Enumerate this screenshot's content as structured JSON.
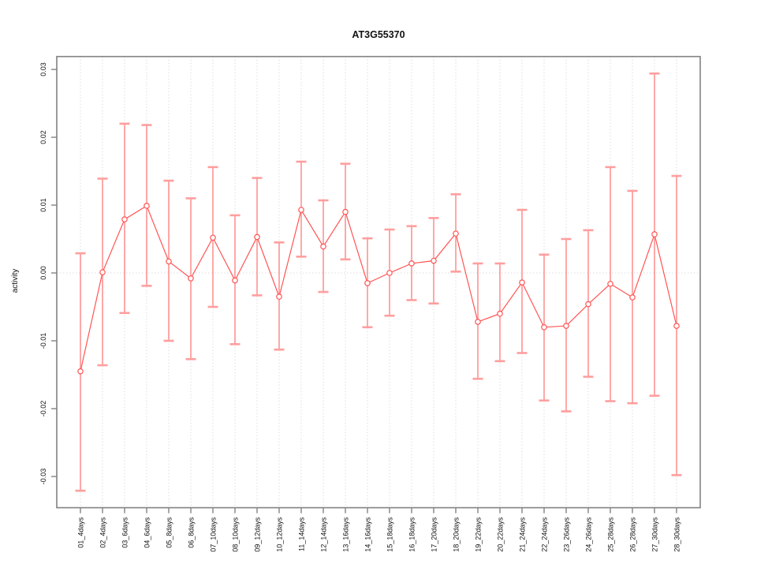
{
  "chart_data": {
    "type": "line",
    "title": "AT3G55370",
    "xlabel": "",
    "ylabel": "activity",
    "legend": "none",
    "categories": [
      "01_4days",
      "02_4days",
      "03_6days",
      "04_6days",
      "05_8days",
      "06_8days",
      "07_10days",
      "08_10days",
      "09_12days",
      "10_12days",
      "11_14days",
      "12_14days",
      "13_16days",
      "14_16days",
      "15_18days",
      "16_18days",
      "17_20days",
      "18_20days",
      "19_22days",
      "20_22days",
      "21_24days",
      "22_24days",
      "23_26days",
      "24_26days",
      "25_28days",
      "26_28days",
      "27_30days",
      "28_30days"
    ],
    "series": [
      {
        "name": "activity",
        "values": [
          -0.0145,
          0.0001,
          0.0079,
          0.0099,
          0.0017,
          -0.0008,
          0.0052,
          -0.0011,
          0.0053,
          -0.0035,
          0.0093,
          0.0039,
          0.009,
          -0.0015,
          0.0,
          0.0014,
          0.0018,
          0.0058,
          -0.0072,
          -0.006,
          -0.0014,
          -0.008,
          -0.0078,
          -0.0046,
          -0.0016,
          -0.0036,
          0.0057,
          -0.0078
        ],
        "error_upper": [
          0.0029,
          0.0139,
          0.022,
          0.0218,
          0.0136,
          0.011,
          0.0156,
          0.0085,
          0.014,
          0.0045,
          0.0164,
          0.0107,
          0.0161,
          0.0051,
          0.0064,
          0.0069,
          0.0081,
          0.0116,
          0.0014,
          0.0014,
          0.0093,
          0.0027,
          0.005,
          0.0063,
          0.0156,
          0.0121,
          0.0294,
          0.0143
        ],
        "error_lower": [
          -0.0321,
          -0.0136,
          -0.0059,
          -0.0019,
          -0.01,
          -0.0127,
          -0.005,
          -0.0105,
          -0.0033,
          -0.0113,
          0.0024,
          -0.0028,
          0.002,
          -0.008,
          -0.0063,
          -0.004,
          -0.0045,
          0.0002,
          -0.0156,
          -0.013,
          -0.0118,
          -0.0188,
          -0.0204,
          -0.0153,
          -0.0189,
          -0.0192,
          -0.0181,
          -0.0298
        ]
      }
    ],
    "ylim": [
      -0.0346,
      0.0319
    ],
    "yticks": [
      {
        "value": 0.03,
        "label": "0.03"
      },
      {
        "value": 0.02,
        "label": "0.02"
      },
      {
        "value": 0.01,
        "label": "0.01"
      },
      {
        "value": 0.0,
        "label": "0.00"
      },
      {
        "value": -0.01,
        "label": "-0.01"
      },
      {
        "value": -0.02,
        "label": "-0.02"
      },
      {
        "value": -0.03,
        "label": "-0.03"
      }
    ],
    "grid": {
      "vertical_at_each_category": true,
      "horizontal": "zero-line-only",
      "style": "dotted"
    },
    "colors": {
      "line": "#ff5454",
      "marker_stroke": "#ff5454",
      "marker_fill": "#ffffff",
      "error_bar": "#ff9e9e",
      "grid_line": "#dcdcdc",
      "frame": "#828282",
      "text": "#111111"
    }
  }
}
